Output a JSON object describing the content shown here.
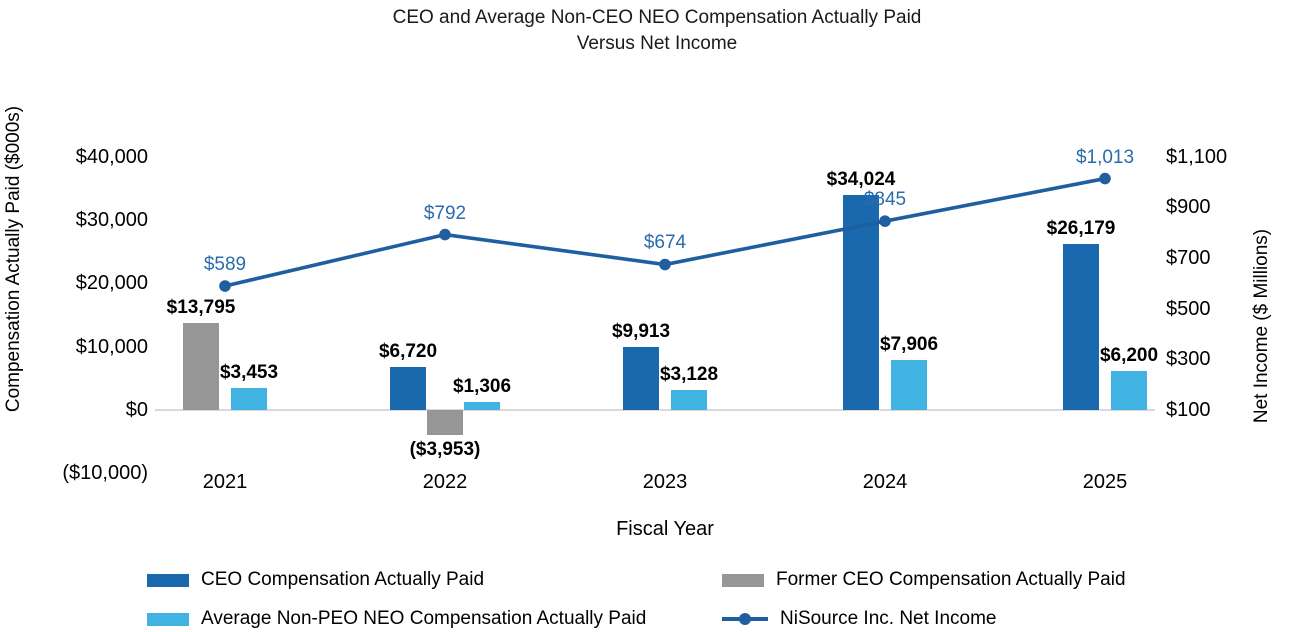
{
  "title": {
    "line1": "CEO and Average Non-CEO NEO Compensation Actually Paid",
    "line2": "Versus Net Income"
  },
  "axes": {
    "left": {
      "title": "Compensation Actually Paid ($000s)",
      "ticks": [
        {
          "label": "$40,000",
          "value": 40000
        },
        {
          "label": "$30,000",
          "value": 30000
        },
        {
          "label": "$20,000",
          "value": 20000
        },
        {
          "label": "$10,000",
          "value": 10000
        },
        {
          "label": "$0",
          "value": 0
        },
        {
          "label": "($10,000)",
          "value": -10000
        }
      ]
    },
    "right": {
      "title": "Net Income ($ Millions)",
      "ticks": [
        {
          "label": "$1,100",
          "value": 1100
        },
        {
          "label": "$900",
          "value": 900
        },
        {
          "label": "$700",
          "value": 700
        },
        {
          "label": "$500",
          "value": 500
        },
        {
          "label": "$300",
          "value": 300
        },
        {
          "label": "$100",
          "value": 100
        }
      ]
    },
    "x": {
      "title": "Fiscal Year"
    }
  },
  "colors": {
    "ceo_bar": "#1A68AD",
    "former_ceo_bar": "#969696",
    "neo_bar": "#41B3E3",
    "net_income_line": "#1F5FA0",
    "line_label": "#2A6CAC",
    "bar_label": "#000000",
    "baseline": "#D9D9D9"
  },
  "legend": {
    "items": [
      {
        "key": "ceo",
        "label": "CEO Compensation Actually Paid",
        "swatch": "bar",
        "color": "#1A68AD"
      },
      {
        "key": "former-ceo",
        "label": "Former CEO Compensation Actually Paid",
        "swatch": "bar",
        "color": "#969696"
      },
      {
        "key": "avg-neo",
        "label": "Average Non-PEO NEO Compensation Actually Paid",
        "swatch": "bar",
        "color": "#41B3E3"
      },
      {
        "key": "net-income",
        "label": "NiSource Inc. Net Income",
        "swatch": "line",
        "color": "#1F5FA0"
      }
    ]
  },
  "chart_data": {
    "type": "bar",
    "subtype": "grouped-bars-with-line-overlay",
    "title": "CEO and Average Non-CEO NEO Compensation Actually Paid Versus Net Income",
    "xlabel": "Fiscal Year",
    "ylabel_left": "Compensation Actually Paid ($000s)",
    "ylabel_right": "Net Income ($ Millions)",
    "ylim_left": [
      -10000,
      40000
    ],
    "ylim_right": [
      100,
      1100
    ],
    "grid": "zero-baseline-only",
    "legend_position": "bottom",
    "categories": [
      "2021",
      "2022",
      "2023",
      "2024",
      "2025"
    ],
    "series": [
      {
        "key": "ceo",
        "name": "CEO Compensation Actually Paid",
        "kind": "bar",
        "axis": "left",
        "color": "#1A68AD",
        "values": [
          null,
          6720,
          9913,
          34024,
          26179
        ],
        "labels": [
          "",
          "$6,720",
          "$9,913",
          "$34,024",
          "$26,179"
        ]
      },
      {
        "key": "former-ceo",
        "name": "Former CEO Compensation Actually Paid",
        "kind": "bar",
        "axis": "left",
        "color": "#969696",
        "values": [
          13795,
          -3953,
          null,
          null,
          null
        ],
        "labels": [
          "$13,795",
          "($3,953)",
          "",
          "",
          ""
        ]
      },
      {
        "key": "avg-neo",
        "name": "Average Non-PEO NEO Compensation Actually Paid",
        "kind": "bar",
        "axis": "left",
        "color": "#41B3E3",
        "values": [
          3453,
          1306,
          3128,
          7906,
          6200
        ],
        "labels": [
          "$3,453",
          "$1,306",
          "$3,128",
          "$7,906",
          "$6,200"
        ]
      },
      {
        "key": "net-income",
        "name": "NiSource Inc. Net Income",
        "kind": "line",
        "axis": "right",
        "color": "#1F5FA0",
        "values": [
          589,
          792,
          674,
          845,
          1013
        ],
        "labels": [
          "$589",
          "$792",
          "$674",
          "$845",
          "$1,013"
        ]
      }
    ]
  }
}
